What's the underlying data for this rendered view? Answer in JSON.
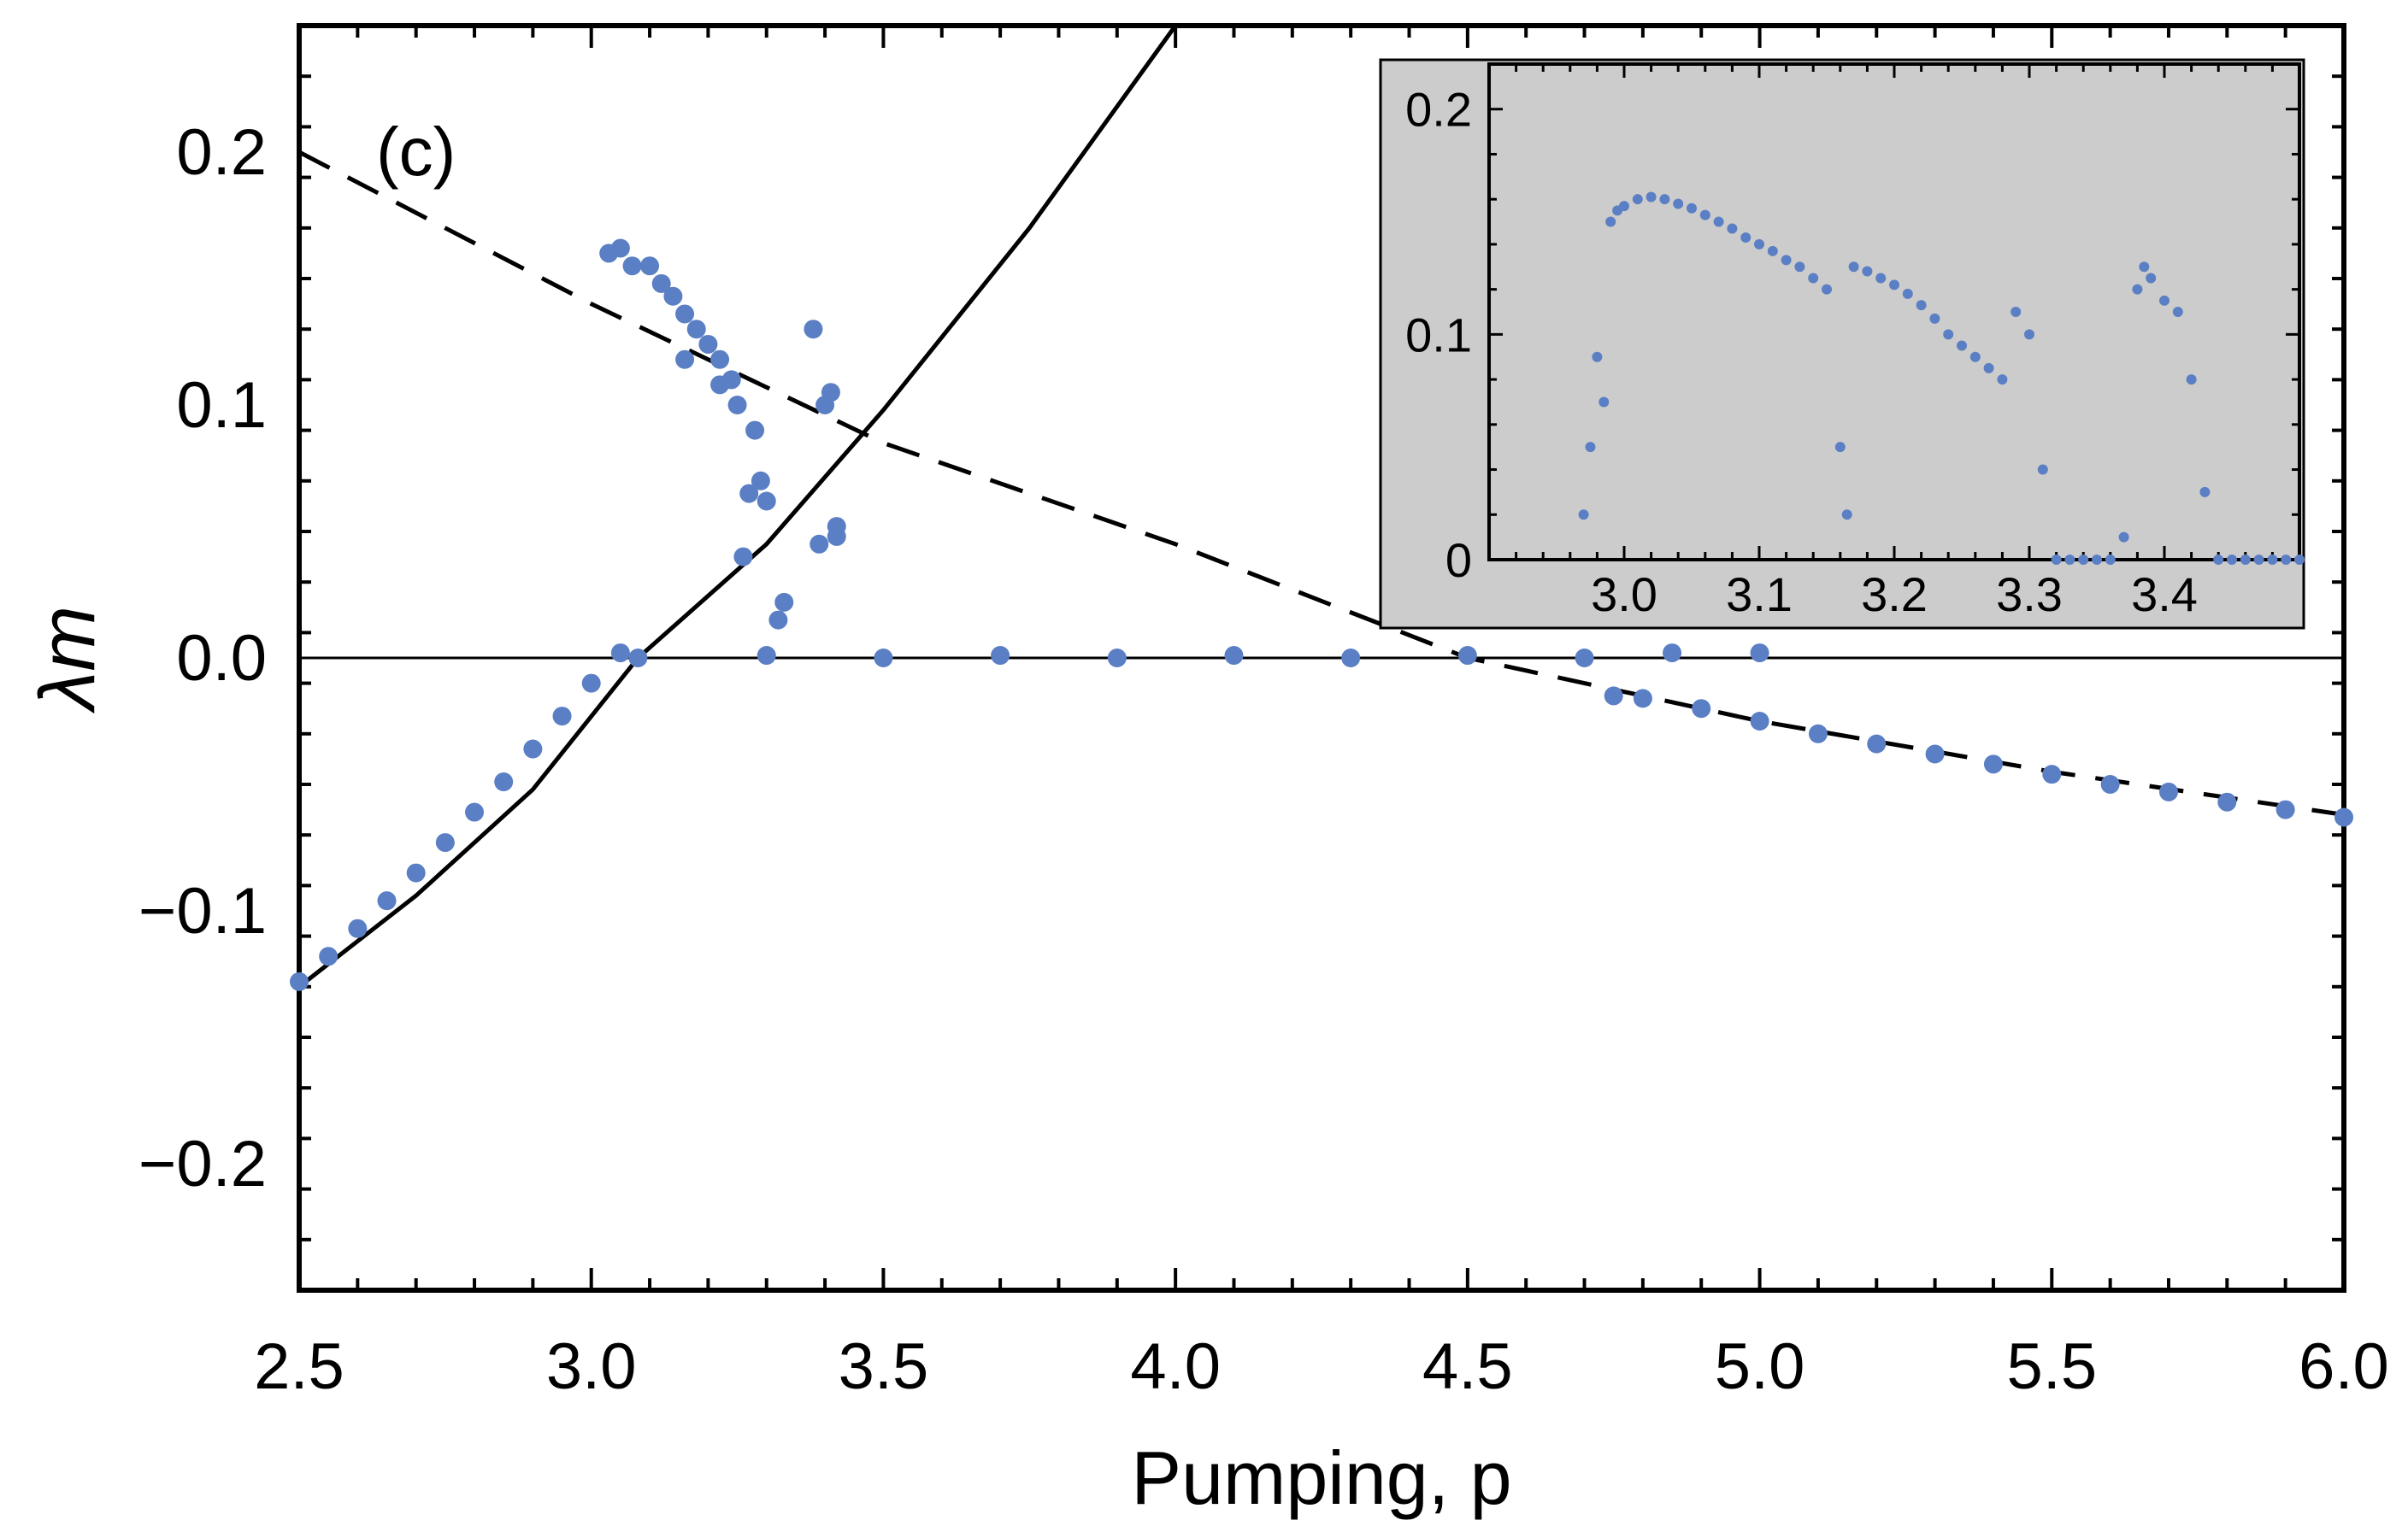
{
  "chart_data": [
    {
      "type": "scatter",
      "panel_label": "(c)",
      "xlabel": "Pumping, p",
      "ylabel": "λm",
      "xlim": [
        2.5,
        6.0
      ],
      "ylim": [
        -0.25,
        0.25
      ],
      "xticks": [
        "2.5",
        "3.0",
        "3.5",
        "4.0",
        "4.5",
        "5.0",
        "5.5",
        "6.0"
      ],
      "yticks": [
        "−0.2",
        "−0.1",
        "0.0",
        "0.1",
        "0.2"
      ],
      "grid": false,
      "point_color": "#5b7fc4",
      "reference_lines": [
        {
          "style": "solid",
          "x": [
            2.5,
            2.7,
            2.9,
            3.08,
            3.3,
            3.5,
            3.75,
            4.0
          ],
          "y": [
            -0.13,
            -0.094,
            -0.052,
            0.0,
            0.045,
            0.098,
            0.17,
            0.25
          ]
        },
        {
          "style": "dashed",
          "x": [
            2.5,
            3.0,
            3.5,
            4.0,
            4.5,
            5.0,
            5.5,
            6.0
          ],
          "y": [
            0.2,
            0.14,
            0.085,
            0.045,
            0.0,
            -0.025,
            -0.045,
            -0.062
          ]
        },
        {
          "style": "solid-thin",
          "x": [
            2.5,
            6.0
          ],
          "y": [
            0.0,
            0.0
          ]
        }
      ],
      "series": [
        {
          "x": [
            2.5,
            2.55,
            2.6,
            2.65,
            2.7,
            2.75,
            2.8,
            2.85,
            2.9,
            2.95,
            3.0,
            3.05,
            3.08,
            3.03,
            3.05,
            3.07,
            3.1,
            3.12,
            3.14,
            3.16,
            3.18,
            3.2,
            3.22,
            3.24,
            3.16,
            3.22,
            3.25,
            3.28,
            3.29,
            3.3,
            3.33,
            3.26,
            3.27,
            3.32,
            3.38,
            3.4,
            3.41,
            3.42,
            3.39,
            3.42,
            3.3,
            3.5,
            3.7,
            3.9,
            4.1,
            4.3,
            4.5,
            4.7,
            4.85,
            5.0,
            4.75,
            4.8,
            4.9,
            5.0,
            5.1,
            5.2,
            5.3,
            5.4,
            5.5,
            5.6,
            5.7,
            5.8,
            5.9,
            6.0
          ],
          "y": [
            -0.128,
            -0.118,
            -0.107,
            -0.096,
            -0.085,
            -0.073,
            -0.061,
            -0.049,
            -0.036,
            -0.023,
            -0.01,
            0.002,
            0.0,
            0.16,
            0.162,
            0.155,
            0.155,
            0.148,
            0.143,
            0.136,
            0.13,
            0.124,
            0.118,
            0.11,
            0.118,
            0.108,
            0.1,
            0.09,
            0.07,
            0.062,
            0.022,
            0.04,
            0.065,
            0.015,
            0.13,
            0.1,
            0.105,
            0.048,
            0.045,
            0.052,
            0.001,
            0.0,
            0.001,
            0.0,
            0.001,
            0.0,
            0.001,
            0.0,
            0.002,
            0.002,
            -0.015,
            -0.016,
            -0.02,
            -0.025,
            -0.03,
            -0.034,
            -0.038,
            -0.042,
            -0.046,
            -0.05,
            -0.053,
            -0.057,
            -0.06,
            -0.063
          ]
        }
      ]
    },
    {
      "type": "scatter",
      "role": "inset",
      "xlim": [
        2.9,
        3.5
      ],
      "ylim": [
        0.0,
        0.22
      ],
      "xticks": [
        "3.0",
        "3.1",
        "3.2",
        "3.3",
        "3.4"
      ],
      "yticks": [
        "0",
        "0.1",
        "0.2"
      ],
      "background": "#cccccc",
      "point_color": "#5b7fc4",
      "series": [
        {
          "x": [
            2.97,
            2.975,
            2.98,
            2.985,
            2.99,
            2.995,
            3.0,
            3.01,
            3.02,
            3.03,
            3.04,
            3.05,
            3.06,
            3.07,
            3.08,
            3.09,
            3.1,
            3.11,
            3.12,
            3.13,
            3.14,
            3.15,
            3.16,
            3.165,
            3.17,
            3.18,
            3.19,
            3.2,
            3.21,
            3.22,
            3.23,
            3.24,
            3.25,
            3.26,
            3.27,
            3.28,
            3.29,
            3.3,
            3.31,
            3.32,
            3.33,
            3.34,
            3.35,
            3.36,
            3.37,
            3.38,
            3.385,
            3.39,
            3.4,
            3.41,
            3.42,
            3.43,
            3.44,
            3.45,
            3.46,
            3.47,
            3.48,
            3.49,
            3.5
          ],
          "y": [
            0.02,
            0.05,
            0.09,
            0.07,
            0.15,
            0.155,
            0.157,
            0.16,
            0.161,
            0.16,
            0.158,
            0.156,
            0.153,
            0.15,
            0.147,
            0.143,
            0.14,
            0.137,
            0.133,
            0.13,
            0.125,
            0.12,
            0.05,
            0.02,
            0.13,
            0.128,
            0.125,
            0.122,
            0.118,
            0.113,
            0.107,
            0.1,
            0.095,
            0.09,
            0.085,
            0.08,
            0.11,
            0.1,
            0.04,
            0.0,
            0.0,
            0.0,
            0.0,
            0.0,
            0.01,
            0.12,
            0.13,
            0.125,
            0.115,
            0.11,
            0.08,
            0.03,
            0.0,
            0.0,
            0.0,
            0.0,
            0.0,
            0.0,
            0.0
          ]
        }
      ]
    }
  ]
}
